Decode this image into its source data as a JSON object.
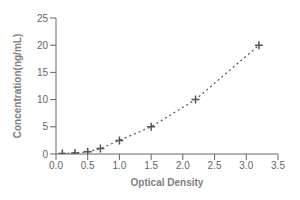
{
  "chart_data": {
    "type": "line",
    "x": [
      0.1,
      0.3,
      0.5,
      0.7,
      1.0,
      1.5,
      2.2,
      3.2
    ],
    "values": [
      0.1,
      0.2,
      0.4,
      1.0,
      2.5,
      5.0,
      10.0,
      20.0
    ],
    "xlabel": "Optical Density",
    "ylabel": "Concentration(ng/mL)",
    "xlim": [
      0,
      3.5
    ],
    "ylim": [
      0,
      25
    ],
    "xticks": [
      {
        "value": 0,
        "label": "0.0"
      },
      0.5,
      {
        "value": 1.0,
        "label": "1.0"
      },
      1.5,
      {
        "value": 2.0,
        "label": "2.0"
      },
      2.5,
      {
        "value": 3.0,
        "label": "3.0"
      },
      3.5
    ],
    "yticks": [
      0,
      5,
      10,
      15,
      20,
      25
    ],
    "color": "#555555",
    "marker": "plus",
    "line_style": "dotted"
  }
}
